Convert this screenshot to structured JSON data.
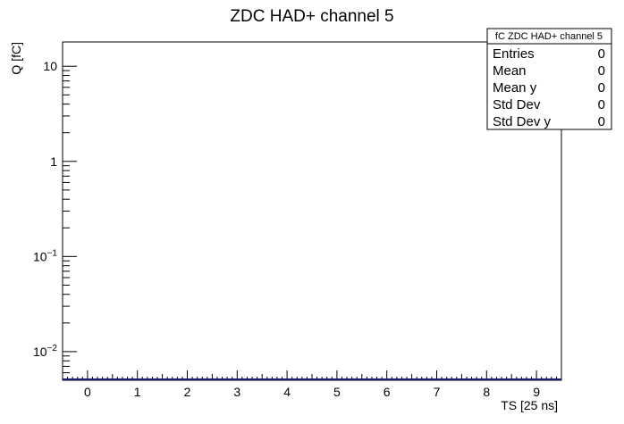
{
  "chart_data": {
    "type": "line",
    "title": "ZDC HAD+ channel 5",
    "xlabel": "TS [25 ns]",
    "ylabel": "Q [fC]",
    "xlim": [
      -0.5,
      9.5
    ],
    "ylim": [
      0.005,
      18
    ],
    "y_scale": "log",
    "x_tick_labels": [
      "0",
      "1",
      "2",
      "3",
      "4",
      "5",
      "6",
      "7",
      "8",
      "9"
    ],
    "y_tick_labels": [
      {
        "mantissa": "10",
        "exp": ""
      },
      {
        "mantissa": "1",
        "exp": ""
      },
      {
        "mantissa": "10",
        "exp": "−1"
      },
      {
        "mantissa": "10",
        "exp": "−2"
      }
    ],
    "series": [
      {
        "values": [
          0,
          0,
          0,
          0,
          0,
          0,
          0,
          0,
          0,
          0
        ],
        "color": "#1a1a6e"
      }
    ],
    "stats_box": {
      "title": "fC ZDC HAD+ channel 5",
      "rows": [
        {
          "label": "Entries",
          "value": "0"
        },
        {
          "label": "Mean",
          "value": "0"
        },
        {
          "label": "Mean y",
          "value": "0"
        },
        {
          "label": "Std Dev",
          "value": "0"
        },
        {
          "label": "Std Dev y",
          "value": "0"
        }
      ]
    },
    "grid": false,
    "legend": "top-right"
  }
}
